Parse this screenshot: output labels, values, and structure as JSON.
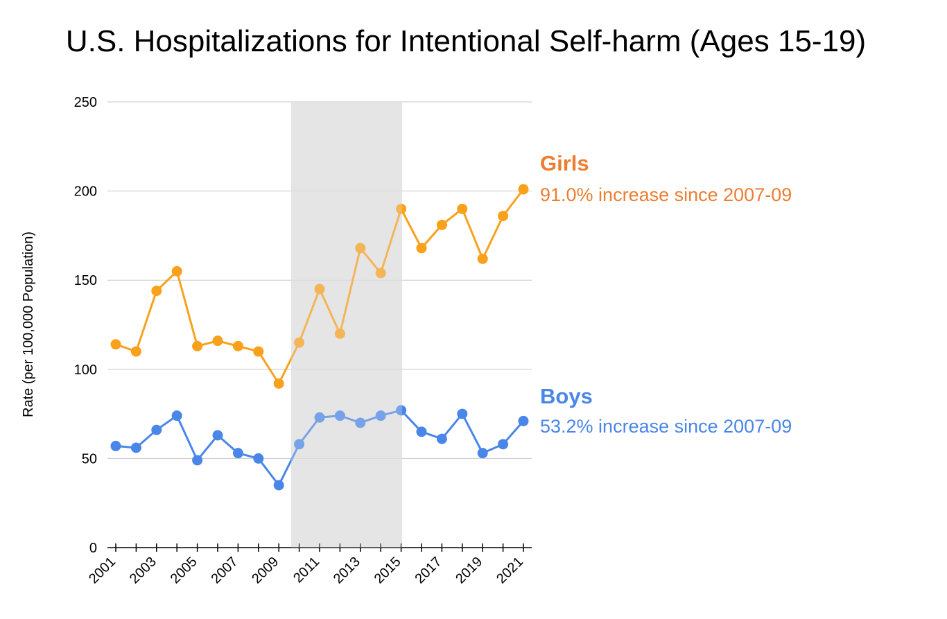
{
  "chart_data": {
    "type": "line",
    "title": "U.S. Hospitalizations for Intentional Self-harm (Ages 15-19)",
    "xlabel": "",
    "ylabel": "Rate (per 100,000 Population)",
    "ylim": [
      0,
      250
    ],
    "yticks": [
      "0",
      "50",
      "100",
      "150",
      "200",
      "250"
    ],
    "x": [
      2001,
      2002,
      2003,
      2004,
      2005,
      2006,
      2007,
      2008,
      2009,
      2010,
      2011,
      2012,
      2013,
      2014,
      2015,
      2016,
      2017,
      2018,
      2019,
      2020,
      2021
    ],
    "xtick_labels": [
      "2001",
      "2003",
      "2005",
      "2007",
      "2009",
      "2011",
      "2013",
      "2015",
      "2017",
      "2019",
      "2021"
    ],
    "grid": true,
    "shaded_region": {
      "from": 2009.6,
      "to": 2015.05
    },
    "series": [
      {
        "name": "Girls",
        "annotation": "91.0% increase since 2007-09",
        "color": "#f9a11b",
        "label_color": "#ed7d31",
        "values": [
          114,
          110,
          144,
          155,
          113,
          116,
          113,
          110,
          92,
          115,
          145,
          120,
          168,
          154,
          190,
          168,
          181,
          190,
          162,
          186,
          201
        ]
      },
      {
        "name": "Boys",
        "annotation": "53.2% increase since 2007-09",
        "color": "#4a86e8",
        "label_color": "#4a86e8",
        "values": [
          57,
          56,
          66,
          74,
          49,
          63,
          53,
          50,
          35,
          58,
          73,
          74,
          70,
          74,
          77,
          65,
          61,
          75,
          53,
          58,
          71
        ]
      }
    ]
  }
}
